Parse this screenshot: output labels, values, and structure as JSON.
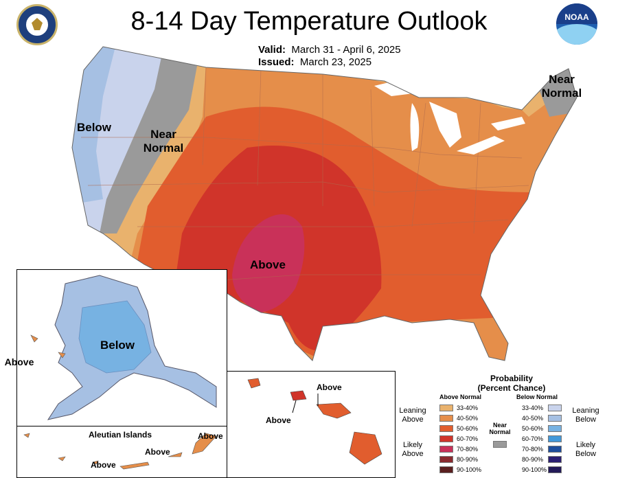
{
  "header": {
    "title": "8-14 Day Temperature Outlook",
    "valid_label": "Valid:",
    "valid_value": "March 31 - April 6, 2025",
    "issued_label": "Issued:",
    "issued_value": "March 23, 2025"
  },
  "logos": {
    "left": "department-of-commerce-seal",
    "right_text": "NOAA"
  },
  "map_labels": {
    "below_west": "Below",
    "near_normal_west": "Near Normal",
    "near_normal_ne": "Near Normal",
    "above_center": "Above",
    "alaska_below": "Below",
    "alaska_above": "Above",
    "aleutian_title": "Aleutian Islands",
    "aleutian_above_1": "Above",
    "aleutian_above_2": "Above",
    "aleutian_above_3": "Above",
    "hawaii_above_1": "Above",
    "hawaii_above_2": "Above"
  },
  "legend": {
    "title_line1": "Probability",
    "title_line2": "(Percent Chance)",
    "above_header": "Above Normal",
    "below_header": "Below Normal",
    "near_normal": "Near Normal",
    "leaning_above": "Leaning Above",
    "likely_above": "Likely Above",
    "leaning_below": "Leaning Below",
    "likely_below": "Likely Below",
    "ranges": [
      "33-40%",
      "40-50%",
      "50-60%",
      "60-70%",
      "70-80%",
      "80-90%",
      "90-100%"
    ],
    "above_colors": [
      "#e9b26d",
      "#e58e4a",
      "#e15d2e",
      "#d0342a",
      "#c93159",
      "#8a2a2f",
      "#5a1f1f"
    ],
    "below_colors": [
      "#c9d3ec",
      "#a6c0e3",
      "#77b2e2",
      "#4298d9",
      "#1e4e9c",
      "#2b1f73",
      "#231a58"
    ],
    "near_normal_color": "#9a9a9a"
  }
}
